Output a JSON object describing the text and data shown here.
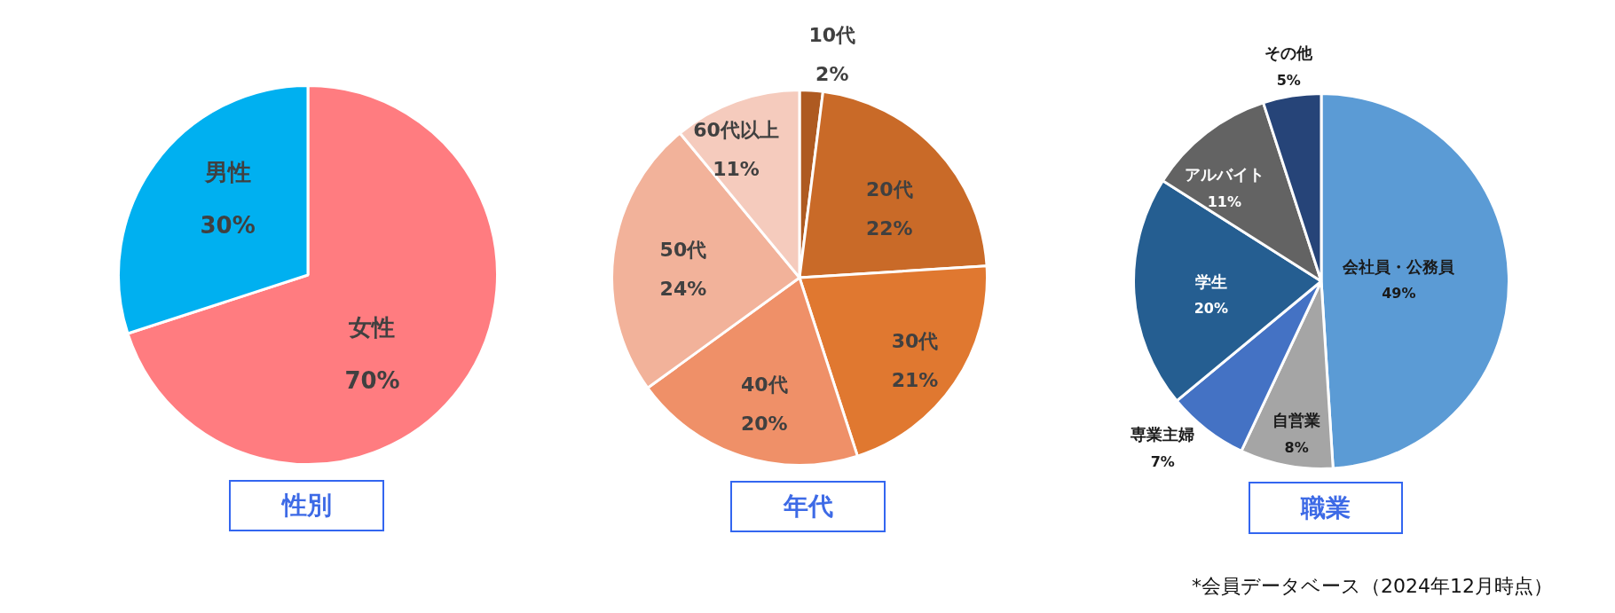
{
  "chart_data": [
    {
      "type": "pie",
      "title": "性別",
      "categories": [
        "女性",
        "男性"
      ],
      "values": [
        70,
        30
      ],
      "colors": [
        "#ff7c80",
        "#00b0f0"
      ],
      "value_labels": [
        "70%",
        "30%"
      ]
    },
    {
      "type": "pie",
      "title": "年代",
      "categories": [
        "10代",
        "20代",
        "30代",
        "40代",
        "50代",
        "60代以上"
      ],
      "values": [
        2,
        22,
        21,
        20,
        24,
        11
      ],
      "colors": [
        "#ae5a21",
        "#c96a28",
        "#e07830",
        "#ef9068",
        "#f2b29a",
        "#f5cbbd"
      ],
      "value_labels": [
        "2%",
        "22%",
        "21%",
        "20%",
        "24%",
        "11%"
      ]
    },
    {
      "type": "pie",
      "title": "職業",
      "categories": [
        "会社員・公務員",
        "自営業",
        "専業主婦",
        "学生",
        "アルバイト",
        "その他"
      ],
      "values": [
        49,
        8,
        7,
        20,
        11,
        5
      ],
      "colors": [
        "#5b9bd5",
        "#a5a5a5",
        "#4472c4",
        "#255e91",
        "#636363",
        "#264478"
      ],
      "value_labels": [
        "49%",
        "8%",
        "7%",
        "20%",
        "11%",
        "5%"
      ],
      "annotations": [
        "*会員データベース（2024年12月時点）"
      ]
    }
  ]
}
